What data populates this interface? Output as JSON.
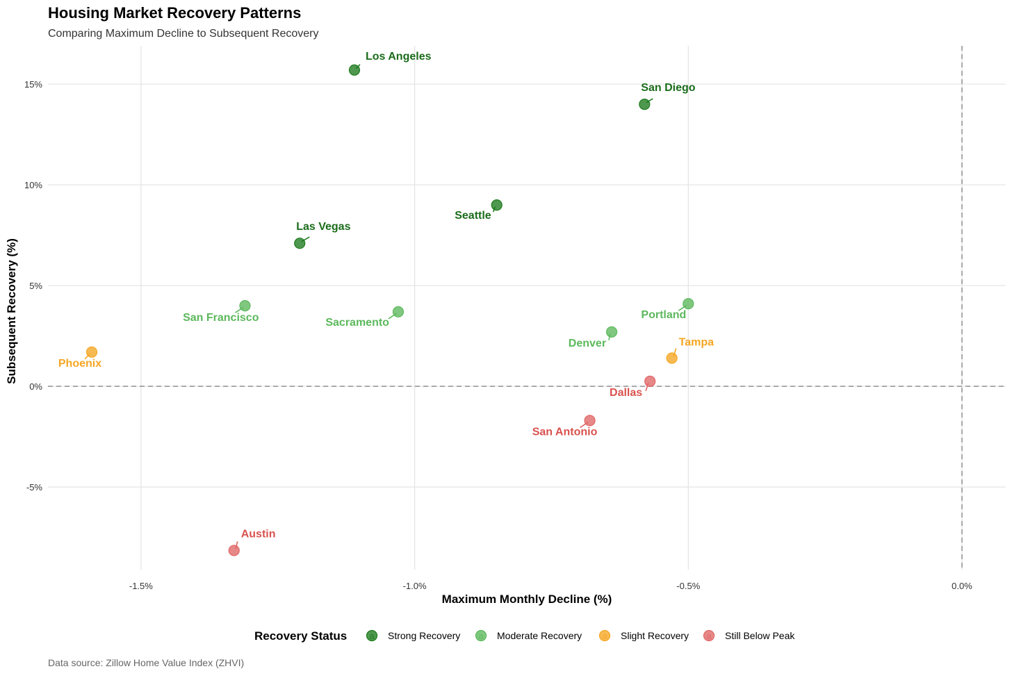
{
  "chart_data": {
    "type": "scatter",
    "title": "Housing Market Recovery Patterns",
    "subtitle": "Comparing Maximum Decline to Subsequent Recovery",
    "xlabel": "Maximum Monthly Decline (%)",
    "ylabel": "Subsequent Recovery (%)",
    "caption": "Data source: Zillow Home Value Index (ZHVI)",
    "xlim": [
      -1.67,
      0.08
    ],
    "ylim": [
      -9.1,
      16.9
    ],
    "x_ticks": [
      {
        "value": -1.5,
        "label": "-1.5%"
      },
      {
        "value": -1.0,
        "label": "-1.0%"
      },
      {
        "value": -0.5,
        "label": "-0.5%"
      },
      {
        "value": 0.0,
        "label": "0.0%"
      }
    ],
    "y_ticks": [
      {
        "value": -5,
        "label": "-5%"
      },
      {
        "value": 0,
        "label": "0%"
      },
      {
        "value": 5,
        "label": "5%"
      },
      {
        "value": 10,
        "label": "10%"
      },
      {
        "value": 15,
        "label": "15%"
      }
    ],
    "reference_lines": {
      "x": 0,
      "y": 0
    },
    "legend": {
      "title": "Recovery Status",
      "position": "bottom",
      "glyph": "a",
      "entries": [
        {
          "key": "strong",
          "label": "Strong Recovery",
          "color": "#1e7b1e"
        },
        {
          "key": "moderate",
          "label": "Moderate Recovery",
          "color": "#5cb85c"
        },
        {
          "key": "slight",
          "label": "Slight Recovery",
          "color": "#f5a623"
        },
        {
          "key": "below",
          "label": "Still Below Peak",
          "color": "#e06666"
        }
      ]
    },
    "label_colors": {
      "strong": "#1a6b1a",
      "moderate": "#5cb85c",
      "slight": "#f5a623",
      "below": "#d9534f"
    },
    "points": [
      {
        "city": "Los Angeles",
        "x": -1.11,
        "y": 15.7,
        "status": "strong"
      },
      {
        "city": "San Diego",
        "x": -0.58,
        "y": 14.0,
        "status": "strong"
      },
      {
        "city": "Seattle",
        "x": -0.85,
        "y": 9.0,
        "status": "strong"
      },
      {
        "city": "Las Vegas",
        "x": -1.21,
        "y": 7.1,
        "status": "strong"
      },
      {
        "city": "San Francisco",
        "x": -1.31,
        "y": 4.0,
        "status": "moderate"
      },
      {
        "city": "Sacramento",
        "x": -1.03,
        "y": 3.7,
        "status": "moderate"
      },
      {
        "city": "Portland",
        "x": -0.5,
        "y": 4.1,
        "status": "moderate"
      },
      {
        "city": "Denver",
        "x": -0.64,
        "y": 2.7,
        "status": "moderate"
      },
      {
        "city": "Phoenix",
        "x": -1.59,
        "y": 1.7,
        "status": "slight"
      },
      {
        "city": "Tampa",
        "x": -0.53,
        "y": 1.4,
        "status": "slight"
      },
      {
        "city": "Dallas",
        "x": -0.57,
        "y": 0.25,
        "status": "below"
      },
      {
        "city": "San Antonio",
        "x": -0.68,
        "y": -1.7,
        "status": "below"
      },
      {
        "city": "Austin",
        "x": -1.33,
        "y": -8.15,
        "status": "below"
      }
    ]
  }
}
